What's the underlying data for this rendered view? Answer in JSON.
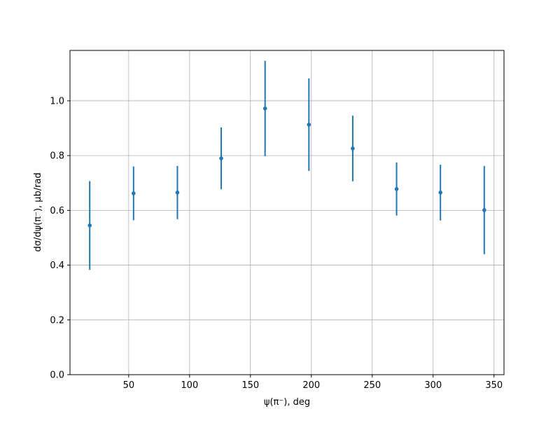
{
  "chart_data": {
    "type": "errorbar",
    "xlabel": "ψ(π⁻), deg",
    "ylabel": "dσ/dψ(π⁻), μb/rad",
    "x": [
      18,
      54,
      90,
      126,
      162,
      198,
      234,
      270,
      306,
      342
    ],
    "values": [
      0.545,
      0.662,
      0.665,
      0.79,
      0.972,
      0.913,
      0.826,
      0.678,
      0.665,
      0.601
    ],
    "errors": [
      0.162,
      0.098,
      0.097,
      0.113,
      0.174,
      0.169,
      0.12,
      0.097,
      0.102,
      0.161
    ],
    "color": "#1f77b4",
    "xlim": [
      1.8,
      358.2
    ],
    "ylim": [
      0,
      1.184
    ],
    "xticks": [
      50,
      100,
      150,
      200,
      250,
      300,
      350
    ],
    "yticks": [
      {
        "value": 0,
        "label": "0.0"
      },
      0.2,
      0.4,
      0.6,
      0.8,
      {
        "value": 1,
        "label": "1.0"
      }
    ],
    "grid": true
  }
}
